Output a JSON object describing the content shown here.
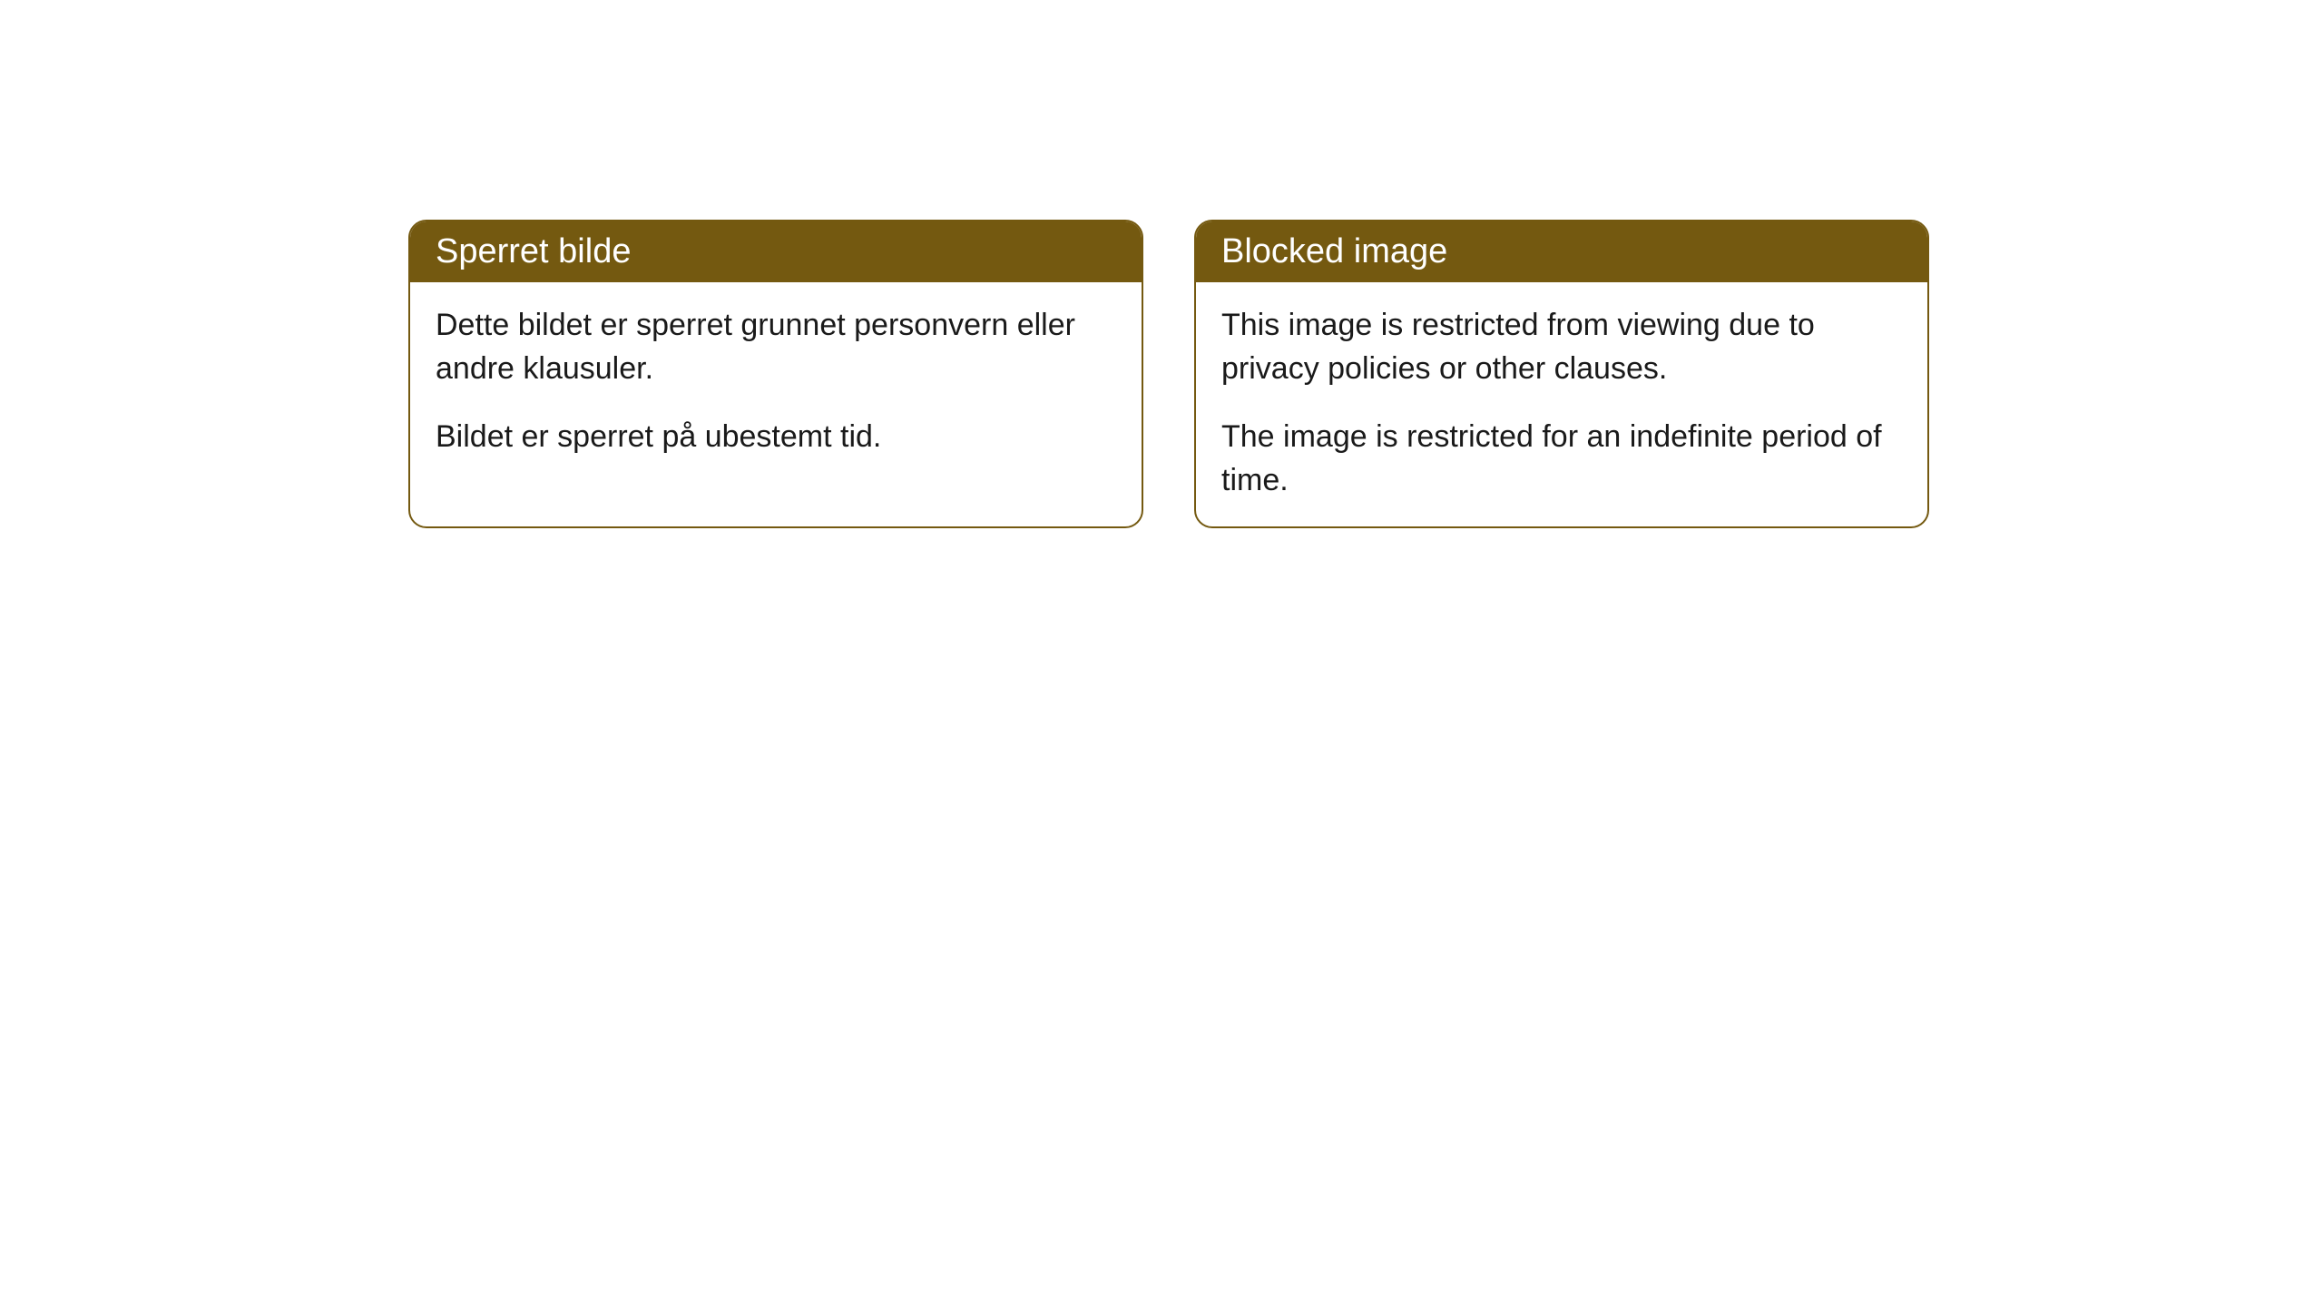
{
  "cards": [
    {
      "title": "Sperret bilde",
      "paragraph1": "Dette bildet er sperret grunnet personvern eller andre klausuler.",
      "paragraph2": "Bildet er sperret på ubestemt tid."
    },
    {
      "title": "Blocked image",
      "paragraph1": "This image is restricted from viewing due to privacy policies or other clauses.",
      "paragraph2": "The image is restricted for an indefinite period of time."
    }
  ],
  "styling": {
    "header_background": "#745910",
    "header_text_color": "#ffffff",
    "border_color": "#745910",
    "body_background": "#ffffff",
    "body_text_color": "#1a1a1a",
    "border_radius": 20,
    "header_fontsize": 38,
    "body_fontsize": 34
  }
}
